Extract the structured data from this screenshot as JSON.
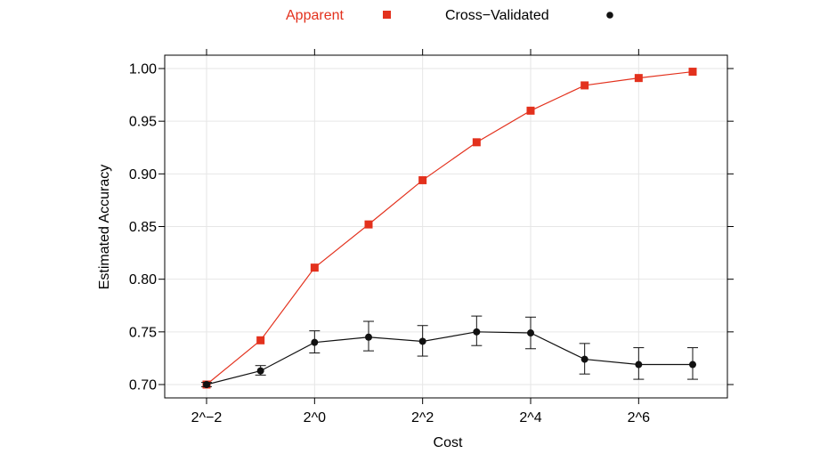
{
  "colors": {
    "apparent": "#e3311d",
    "cross_validated": "#111111",
    "grid": "#e6e6e6",
    "axis": "#000000"
  },
  "chart_data": {
    "type": "line",
    "title": "",
    "xlabel": "Cost",
    "ylabel": "Estimated Accuracy",
    "x_scale": "log2",
    "x": [
      0.25,
      0.5,
      1,
      2,
      4,
      8,
      16,
      32,
      64,
      128
    ],
    "xlim": [
      0.25,
      128
    ],
    "ylim": [
      0.7,
      1.0
    ],
    "x_ticks": [
      {
        "value": 0.25,
        "label": "2^−2"
      },
      {
        "value": 1,
        "label": "2^0"
      },
      {
        "value": 4,
        "label": "2^2"
      },
      {
        "value": 16,
        "label": "2^4"
      },
      {
        "value": 64,
        "label": "2^6"
      }
    ],
    "y_ticks": [
      {
        "value": 0.7,
        "label": "0.70"
      },
      {
        "value": 0.75,
        "label": "0.75"
      },
      {
        "value": 0.8,
        "label": "0.80"
      },
      {
        "value": 0.85,
        "label": "0.85"
      },
      {
        "value": 0.9,
        "label": "0.90"
      },
      {
        "value": 0.95,
        "label": "0.95"
      },
      {
        "value": 1.0,
        "label": "1.00"
      }
    ],
    "grid": true,
    "legend_position": "top",
    "series": [
      {
        "name": "Apparent",
        "marker": "square",
        "color": "#e3311d",
        "values": [
          0.7,
          0.742,
          0.811,
          0.852,
          0.894,
          0.93,
          0.96,
          0.984,
          0.991,
          0.997
        ]
      },
      {
        "name": "Cross−Validated",
        "marker": "circle",
        "color": "#111111",
        "values": [
          0.7,
          0.713,
          0.74,
          0.745,
          0.741,
          0.75,
          0.749,
          0.724,
          0.719,
          0.719
        ],
        "error_low": [
          0.698,
          0.709,
          0.73,
          0.732,
          0.727,
          0.737,
          0.734,
          0.71,
          0.705,
          0.705
        ],
        "error_high": [
          0.702,
          0.718,
          0.751,
          0.76,
          0.756,
          0.765,
          0.764,
          0.739,
          0.735,
          0.735
        ]
      }
    ]
  }
}
